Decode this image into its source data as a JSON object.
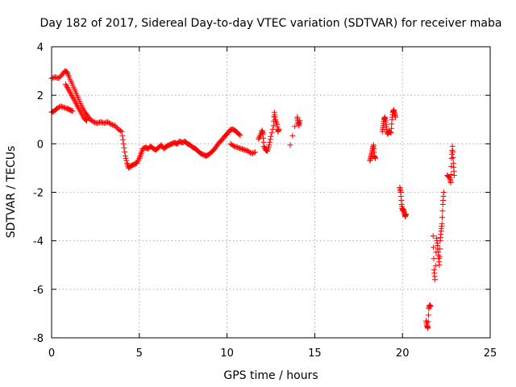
{
  "chart_data": {
    "type": "scatter",
    "title": "Day 182 of 2017, Sidereal Day-to-day VTEC variation (SDTVAR) for receiver maba",
    "xlabel": "GPS time / hours",
    "ylabel": "SDTVAR / TECUs",
    "xlim": [
      0,
      25
    ],
    "ylim": [
      -8,
      4
    ],
    "xticks": [
      0,
      5,
      10,
      15,
      20,
      25
    ],
    "yticks": [
      -8,
      -6,
      -4,
      -2,
      0,
      2,
      4
    ],
    "grid": true,
    "marker": "+",
    "color": "#ff0000",
    "series": [
      {
        "name": "SDTVAR",
        "segments": [
          [
            [
              0.0,
              2.7
            ],
            [
              0.2,
              2.75
            ],
            [
              0.4,
              2.7
            ],
            [
              0.6,
              2.85
            ],
            [
              0.75,
              3.0
            ],
            [
              0.9,
              2.95
            ],
            [
              1.0,
              2.75
            ],
            [
              1.15,
              2.5
            ],
            [
              1.3,
              2.25
            ],
            [
              1.45,
              2.0
            ],
            [
              1.6,
              1.75
            ],
            [
              1.75,
              1.5
            ],
            [
              1.9,
              1.3
            ],
            [
              2.05,
              1.15
            ],
            [
              2.2,
              1.0
            ],
            [
              2.4,
              0.9
            ],
            [
              2.6,
              0.85
            ],
            [
              2.8,
              0.9
            ],
            [
              3.0,
              0.85
            ],
            [
              3.2,
              0.9
            ],
            [
              3.4,
              0.8
            ],
            [
              3.6,
              0.75
            ],
            [
              3.8,
              0.6
            ],
            [
              4.0,
              0.5
            ],
            [
              4.1,
              0.0
            ],
            [
              4.2,
              -0.5
            ],
            [
              4.3,
              -0.8
            ],
            [
              4.4,
              -1.0
            ],
            [
              4.55,
              -0.9
            ],
            [
              4.7,
              -0.85
            ],
            [
              4.85,
              -0.8
            ],
            [
              5.0,
              -0.6
            ],
            [
              5.1,
              -0.4
            ],
            [
              5.2,
              -0.2
            ],
            [
              5.35,
              -0.15
            ],
            [
              5.5,
              -0.2
            ],
            [
              5.65,
              -0.1
            ],
            [
              5.8,
              -0.2
            ],
            [
              5.95,
              -0.25
            ],
            [
              6.1,
              -0.15
            ],
            [
              6.25,
              -0.05
            ],
            [
              6.4,
              -0.2
            ],
            [
              6.55,
              -0.1
            ],
            [
              6.7,
              -0.05
            ],
            [
              6.85,
              0.0
            ],
            [
              7.0,
              0.05
            ],
            [
              7.15,
              0.0
            ],
            [
              7.3,
              0.1
            ],
            [
              7.45,
              0.05
            ],
            [
              7.6,
              0.1
            ],
            [
              7.75,
              0.0
            ],
            [
              7.9,
              -0.05
            ],
            [
              8.05,
              -0.15
            ],
            [
              8.2,
              -0.2
            ],
            [
              8.35,
              -0.3
            ],
            [
              8.5,
              -0.4
            ],
            [
              8.65,
              -0.45
            ],
            [
              8.8,
              -0.5
            ],
            [
              8.95,
              -0.45
            ],
            [
              9.1,
              -0.35
            ],
            [
              9.25,
              -0.25
            ],
            [
              9.4,
              -0.1
            ],
            [
              9.55,
              0.05
            ],
            [
              9.7,
              0.15
            ],
            [
              9.85,
              0.3
            ],
            [
              10.0,
              0.4
            ],
            [
              10.15,
              0.55
            ],
            [
              10.3,
              0.6
            ],
            [
              10.45,
              0.55
            ],
            [
              10.6,
              0.45
            ],
            [
              10.75,
              0.35
            ]
          ],
          [
            [
              0.0,
              1.3
            ],
            [
              0.15,
              1.35
            ],
            [
              0.3,
              1.45
            ],
            [
              0.5,
              1.55
            ],
            [
              0.7,
              1.5
            ],
            [
              0.9,
              1.45
            ],
            [
              1.05,
              1.4
            ],
            [
              1.2,
              1.35
            ]
          ],
          [
            [
              0.8,
              2.45
            ],
            [
              0.95,
              2.25
            ],
            [
              1.1,
              2.05
            ],
            [
              1.25,
              1.85
            ],
            [
              1.4,
              1.65
            ],
            [
              1.55,
              1.45
            ],
            [
              1.7,
              1.25
            ],
            [
              1.85,
              1.05
            ],
            [
              2.0,
              0.95
            ]
          ],
          [
            [
              10.2,
              0.0
            ],
            [
              10.4,
              -0.1
            ],
            [
              10.6,
              -0.15
            ],
            [
              10.8,
              -0.2
            ],
            [
              11.0,
              -0.25
            ],
            [
              11.2,
              -0.3
            ],
            [
              11.4,
              -0.4
            ],
            [
              11.6,
              -0.35
            ]
          ],
          [
            [
              11.8,
              0.2
            ],
            [
              11.9,
              0.35
            ],
            [
              12.0,
              0.55
            ],
            [
              12.05,
              0.4
            ],
            [
              12.1,
              -0.1
            ],
            [
              12.2,
              -0.25
            ],
            [
              12.3,
              -0.3
            ],
            [
              12.4,
              -0.05
            ],
            [
              12.5,
              0.3
            ],
            [
              12.65,
              0.75
            ],
            [
              12.7,
              1.3
            ],
            [
              12.75,
              1.0
            ],
            [
              12.85,
              0.8
            ],
            [
              12.9,
              0.5
            ],
            [
              12.95,
              0.6
            ]
          ],
          [
            [
              13.6,
              -0.05
            ],
            [
              14.0,
              1.1
            ],
            [
              14.05,
              0.9
            ],
            [
              14.1,
              0.75
            ],
            [
              14.15,
              0.95
            ]
          ],
          [
            [
              18.15,
              -0.7
            ],
            [
              18.2,
              -0.55
            ],
            [
              18.25,
              -0.4
            ],
            [
              18.3,
              -0.2
            ],
            [
              18.35,
              -0.05
            ],
            [
              18.4,
              -0.5
            ],
            [
              18.45,
              -0.6
            ]
          ],
          [
            [
              18.85,
              0.5
            ],
            [
              18.9,
              0.75
            ],
            [
              18.95,
              1.0
            ],
            [
              19.0,
              1.1
            ],
            [
              19.05,
              0.9
            ],
            [
              19.1,
              0.6
            ],
            [
              19.15,
              0.4
            ],
            [
              19.25,
              0.5
            ],
            [
              19.35,
              0.45
            ],
            [
              19.4,
              1.0
            ],
            [
              19.45,
              1.3
            ],
            [
              19.5,
              1.4
            ],
            [
              19.55,
              1.25
            ],
            [
              19.6,
              1.1
            ]
          ],
          [
            [
              19.85,
              -1.8
            ],
            [
              19.9,
              -2.0
            ],
            [
              19.95,
              -2.5
            ],
            [
              20.0,
              -2.75
            ],
            [
              20.05,
              -2.7
            ],
            [
              20.1,
              -2.85
            ],
            [
              20.15,
              -3.0
            ],
            [
              20.2,
              -2.9
            ]
          ],
          [
            [
              21.35,
              -7.3
            ],
            [
              21.4,
              -7.5
            ],
            [
              21.45,
              -7.6
            ],
            [
              21.5,
              -6.8
            ],
            [
              21.55,
              -6.65
            ],
            [
              21.6,
              -6.7
            ]
          ],
          [
            [
              21.75,
              -3.8
            ],
            [
              21.8,
              -5.2
            ],
            [
              21.85,
              -5.6
            ],
            [
              21.95,
              -3.9
            ],
            [
              22.0,
              -4.2
            ],
            [
              22.05,
              -4.6
            ],
            [
              22.1,
              -5.0
            ],
            [
              22.15,
              -4.0
            ],
            [
              22.2,
              -3.6
            ],
            [
              22.25,
              -3.3
            ],
            [
              22.3,
              -2.5
            ],
            [
              22.35,
              -2.0
            ]
          ],
          [
            [
              22.55,
              -1.3
            ],
            [
              22.7,
              -1.4
            ],
            [
              22.75,
              -1.6
            ],
            [
              22.8,
              -0.6
            ],
            [
              22.85,
              -0.1
            ],
            [
              22.9,
              -0.8
            ],
            [
              22.95,
              -1.3
            ]
          ]
        ]
      }
    ]
  }
}
